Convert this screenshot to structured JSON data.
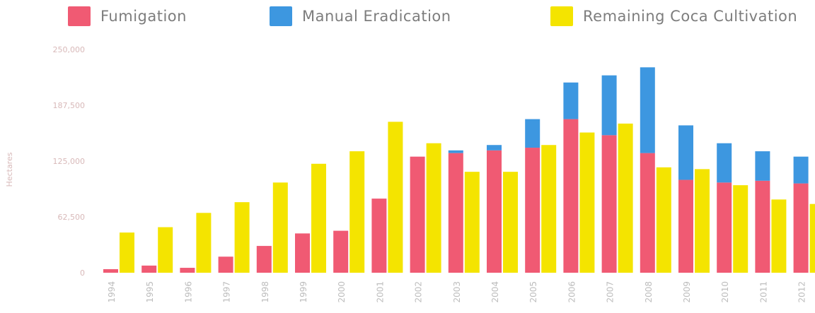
{
  "chart_data": {
    "type": "bar",
    "title": "",
    "xlabel": "",
    "ylabel": "Hectares",
    "ylim": [
      0,
      250000
    ],
    "yticks": [
      "0",
      "62,500",
      "125,000",
      "187,500",
      "250,000"
    ],
    "legend_position": "top",
    "categories": [
      "1994",
      "1995",
      "1996",
      "1997",
      "1998",
      "1999",
      "2000",
      "2001",
      "2002",
      "2003",
      "2004",
      "2005",
      "2006",
      "2007",
      "2008",
      "2009",
      "2010",
      "2011",
      "2012"
    ],
    "series": [
      {
        "name": "Fumigation",
        "color": "#f05a73",
        "stack": "eradication",
        "values": [
          4000,
          8000,
          5500,
          18000,
          30000,
          44000,
          47000,
          83000,
          130000,
          134000,
          137000,
          140000,
          172000,
          154000,
          134000,
          104000,
          101000,
          103000,
          100000
        ]
      },
      {
        "name": "Manual Eradication",
        "color": "#3d97e0",
        "stack": "eradication",
        "values": [
          0,
          0,
          0,
          0,
          0,
          0,
          0,
          0,
          0,
          3000,
          6000,
          32000,
          41000,
          67000,
          96000,
          61000,
          44000,
          33000,
          30000
        ]
      },
      {
        "name": "Remaining Coca Cultivation",
        "color": "#f4e400",
        "stack": "cultivation",
        "values": [
          45000,
          51000,
          67000,
          79000,
          101000,
          122000,
          136000,
          169000,
          145000,
          113000,
          113000,
          143000,
          157000,
          167000,
          118000,
          116000,
          98000,
          82000,
          77000
        ]
      }
    ]
  }
}
